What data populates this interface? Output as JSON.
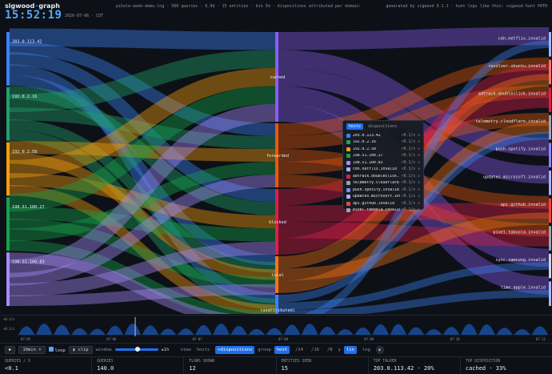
{
  "header": {
    "brand_left": "sigwood",
    "brand_sep": "·",
    "brand_right": "graph",
    "meta": "pihole-week-demo.log · 560 queries · 6.9d · 15 entities · bin 5m · dispositions attributed per domain",
    "generated": "generated by sigwood 0.1.1 · hunt logs like this: sigwood hunt PATH",
    "clock": "15:52:19",
    "date": "2026-07-06 · CDT"
  },
  "sankey": {
    "hosts": [
      {
        "name": "203.0.113.42",
        "color": "#3b82f6"
      },
      {
        "name": "192.0.2.16",
        "color": "#22a06b"
      },
      {
        "name": "192.0.2.58",
        "color": "#f59e0b"
      },
      {
        "name": "198.51.100.27",
        "color": "#16a34a"
      },
      {
        "name": "198.51.100.83",
        "color": "#a78bfa"
      }
    ],
    "dispositions": [
      {
        "name": "cached",
        "color": "#8b5cf6"
      },
      {
        "name": "forwarded",
        "color": "#ea580c"
      },
      {
        "name": "blocked",
        "color": "#e11d48"
      },
      {
        "name": "local",
        "color": "#f97316"
      },
      {
        "name": "(unattributed)",
        "color": "#3b82f6"
      }
    ],
    "domains": [
      {
        "name": "cdn.netflix.invalid",
        "color": "#a5b4fc"
      },
      {
        "name": "resolver.ubuntu.invalid",
        "color": "#f87171"
      },
      {
        "name": "adtrack.doubleclick.invalid",
        "color": "#e11d48"
      },
      {
        "name": "telemetry.cloudflare.invalid",
        "color": "#94a3b8"
      },
      {
        "name": "push.spotify.invalid",
        "color": "#818cf8"
      },
      {
        "name": "updates.microsoft.invalid",
        "color": "#a5b4fc"
      },
      {
        "name": "api.github.invalid",
        "color": "#ef4444"
      },
      {
        "name": "pixel.taboola.invalid",
        "color": "#94a3b8"
      },
      {
        "name": "sync.samsung.invalid",
        "color": "#cbd5e1"
      },
      {
        "name": "time.apple.invalid",
        "color": "#a5b4fc"
      }
    ]
  },
  "legend": {
    "tabs": [
      "hosts",
      "dispositions"
    ],
    "rows": [
      {
        "name": "203.0.113.42",
        "rate": "<0.1/s",
        "color": "#3b82f6"
      },
      {
        "name": "192.0.2.16",
        "rate": "<0.1/s",
        "color": "#22a06b"
      },
      {
        "name": "192.0.2.58",
        "rate": "<0.1/s",
        "color": "#f59e0b"
      },
      {
        "name": "198.51.100.27",
        "rate": "<0.1/s",
        "color": "#16a34a"
      },
      {
        "name": "198.51.100.83",
        "rate": "<0.1/s",
        "color": "#a78bfa"
      },
      {
        "name": "cdn.netflix.invalid",
        "rate": "<0.1/s",
        "color": "#a5b4fc"
      },
      {
        "name": "adtrack.doubleclick...",
        "rate": "<0.1/s",
        "color": "#e11d48"
      },
      {
        "name": "telemetry.cloudflare...",
        "rate": "<0.1/s",
        "color": "#94a3b8"
      },
      {
        "name": "push.spotify.invalid",
        "rate": "<0.1/s",
        "color": "#818cf8"
      },
      {
        "name": "updates.microsoft.inv...",
        "rate": "<0.1/s",
        "color": "#a5b4fc"
      },
      {
        "name": "api.github.invalid",
        "rate": "<0.1/s",
        "color": "#ef4444"
      },
      {
        "name": "pixel.taboola.invalid",
        "rate": "<0.1/s",
        "color": "#94a3b8"
      }
    ],
    "close_glyph": "✕"
  },
  "timeline": {
    "ylabel_top": "<0.1/s",
    "ylabel_bottom": "<0.1/s",
    "days": [
      "07-05",
      "07-06",
      "07-07",
      "07-08",
      "07-09",
      "07-10",
      "07-11"
    ],
    "peaks": 30
  },
  "controls": {
    "play": "▶",
    "speed": "10min",
    "loop": "loop",
    "clip": "clip",
    "window_label": "window",
    "window_value": "±1h",
    "view_label": "view",
    "view_options": [
      "hosts",
      "+dispositions"
    ],
    "group_label": "group",
    "group_options": [
      "host",
      "/24",
      "/16",
      "/8"
    ],
    "scale_options": [
      "y",
      "lin",
      "log"
    ],
    "theme_glyph": "◐"
  },
  "stats": [
    {
      "key": "QUERIES / S",
      "value": "<0.1"
    },
    {
      "key": "QUERIES",
      "value": "140.0"
    },
    {
      "key": "FLOWS SHOWN",
      "value": "12"
    },
    {
      "key": "ENTITIES SEEN",
      "value": "15"
    },
    {
      "key": "TOP TALKER",
      "value": "203.0.113.42 · 20%"
    },
    {
      "key": "TOP DISPOSITION",
      "value": "cached · 33%"
    }
  ]
}
